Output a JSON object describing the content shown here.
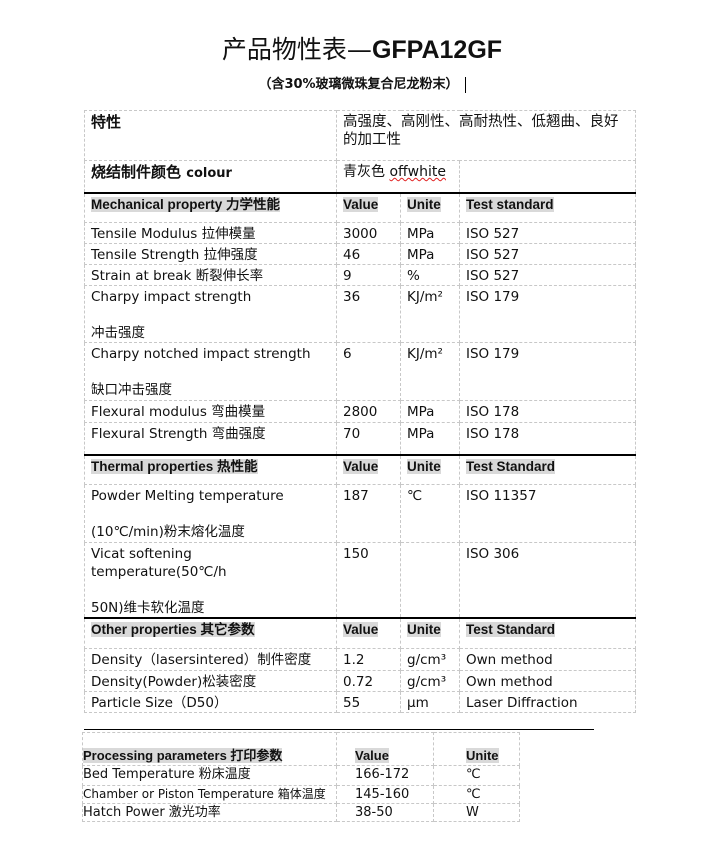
{
  "title": {
    "cn": "产品物性表—",
    "code": "GFPA12GF"
  },
  "subtitle": "（含30%玻璃微珠复合尼龙粉末）",
  "features": {
    "label": "特性",
    "value": "高强度、高刚性、高耐热性、低翘曲、良好的加工性"
  },
  "colour": {
    "label": "烧结制件颜色",
    "label_en": "colour",
    "value_cn": "青灰色",
    "value_en": "offwhite"
  },
  "mechanical": {
    "header": [
      "Mechanical property 力学性能",
      "Value",
      "Unite",
      "Test standard"
    ],
    "rows": [
      [
        "Tensile Modulus 拉伸模量",
        "3000",
        "MPa",
        "ISO 527"
      ],
      [
        "Tensile Strength 拉伸强度",
        "46",
        "MPa",
        "ISO 527"
      ],
      [
        "Strain at break 断裂伸长率",
        "9",
        "%",
        "ISO 527"
      ],
      [
        "Charpy impact strength\n\n冲击强度",
        "36",
        "KJ/m²",
        "ISO 179"
      ],
      [
        "Charpy notched impact strength\n\n缺口冲击强度",
        "6",
        "KJ/m²",
        "ISO 179"
      ],
      [
        "Flexural modulus 弯曲模量",
        "2800",
        "MPa",
        "ISO 178"
      ],
      [
        "Flexural Strength 弯曲强度",
        "70",
        "MPa",
        "ISO 178"
      ]
    ]
  },
  "thermal": {
    "header": [
      "Thermal properties 热性能",
      "Value",
      "Unite",
      "Test Standard"
    ],
    "rows": [
      [
        "Powder Melting temperature\n\n(10℃/min)粉末熔化温度",
        "187",
        "℃",
        "ISO 11357"
      ],
      [
        "Vicat softening temperature(50℃/h\n\n50N)维卡软化温度",
        "150",
        "",
        "ISO 306"
      ]
    ]
  },
  "other": {
    "header": [
      "Other properties 其它参数",
      "Value",
      "Unite",
      "Test Standard"
    ],
    "rows": [
      [
        "Density（lasersintered）制件密度",
        "1.2",
        "g/cm³",
        "Own method"
      ],
      [
        "Density(Powder)松装密度",
        "0.72",
        "g/cm³",
        "Own method"
      ],
      [
        "Particle Size（D50）",
        "55",
        "µm",
        "Laser Diffraction"
      ]
    ]
  },
  "processing": {
    "header": [
      "Processing parameters 打印参数",
      "Value",
      "Unite"
    ],
    "rows": [
      [
        "Bed Temperature 粉床温度",
        "166-172",
        "℃"
      ],
      [
        "Chamber or Piston Temperature 箱体温度",
        "145-160",
        "℃"
      ],
      [
        "Hatch Power 激光功率",
        "38-50",
        "W"
      ]
    ]
  }
}
